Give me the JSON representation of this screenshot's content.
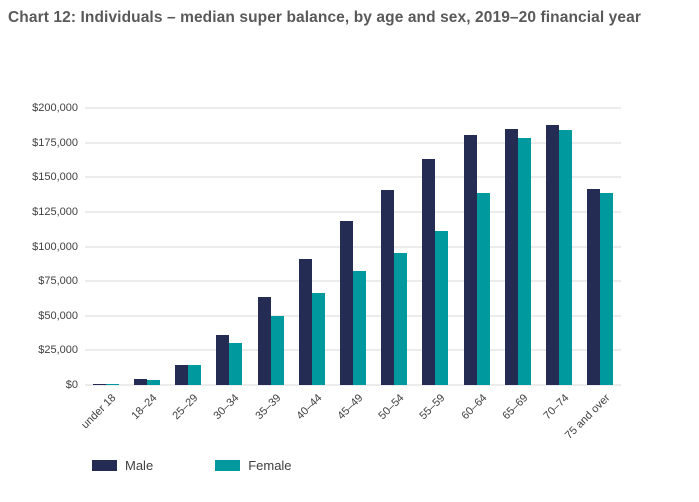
{
  "chart_data": {
    "type": "bar",
    "title": "Chart 12: Individuals – median super balance, by age and sex, 2019–20 financial year",
    "categories": [
      "under 18",
      "18–24",
      "25–29",
      "30–34",
      "35–39",
      "40–44",
      "45–49",
      "50–54",
      "55–59",
      "60–64",
      "65–69",
      "70–74",
      "75 and over"
    ],
    "series": [
      {
        "name": "Male",
        "color": "#242c54",
        "values": [
          800,
          4000,
          14500,
          36000,
          63500,
          91000,
          118500,
          140500,
          163000,
          180500,
          185000,
          188000,
          141500
        ]
      },
      {
        "name": "Female",
        "color": "#00999e",
        "values": [
          600,
          3500,
          14800,
          30500,
          49500,
          66500,
          82500,
          95500,
          111000,
          138500,
          178000,
          184000,
          139000
        ]
      }
    ],
    "xlabel": "",
    "ylabel": "",
    "ylim": [
      0,
      200000
    ],
    "y_ticks": [
      {
        "value": 0,
        "label": "$0"
      },
      {
        "value": 25000,
        "label": "$25,000"
      },
      {
        "value": 50000,
        "label": "$50,000"
      },
      {
        "value": 75000,
        "label": "$75,000"
      },
      {
        "value": 100000,
        "label": "$100,000"
      },
      {
        "value": 125000,
        "label": "$125,000"
      },
      {
        "value": 150000,
        "label": "$150,000"
      },
      {
        "value": 175000,
        "label": "$175,000"
      },
      {
        "value": 200000,
        "label": "$200,000"
      }
    ],
    "grid": true,
    "gridline_color": "#d9d9d9",
    "axis_text_color": "#404040",
    "title_color": "#595959",
    "legend_position": "bottom"
  }
}
